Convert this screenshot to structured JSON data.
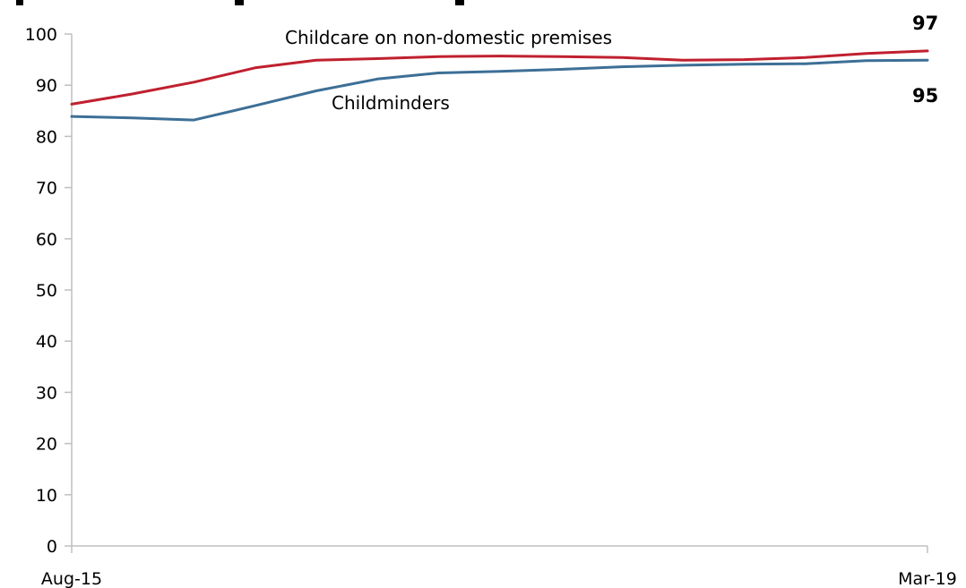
{
  "chart_data": {
    "type": "line",
    "title": "",
    "xlabel": "",
    "ylabel": "",
    "ylim": [
      0,
      100
    ],
    "yticks": [
      0,
      10,
      20,
      30,
      40,
      50,
      60,
      70,
      80,
      90,
      100
    ],
    "x_tick_labels": [
      "Aug-15",
      "Mar-19"
    ],
    "grid": false,
    "legend": "inline",
    "series": [
      {
        "name": "Childcare on non-domestic premises",
        "color": "#c0202f",
        "values": [
          86.3,
          88.3,
          90.6,
          93.4,
          94.9,
          95.2,
          95.6,
          95.7,
          95.6,
          95.4,
          94.9,
          95.0,
          95.4,
          96.2,
          96.7
        ],
        "end_label": "97"
      },
      {
        "name": "Childminders",
        "color": "#3d6f96",
        "values": [
          83.9,
          83.6,
          83.2,
          86.0,
          88.9,
          91.2,
          92.4,
          92.7,
          93.1,
          93.6,
          93.9,
          94.1,
          94.2,
          94.8,
          94.9
        ],
        "end_label": "95"
      }
    ]
  }
}
